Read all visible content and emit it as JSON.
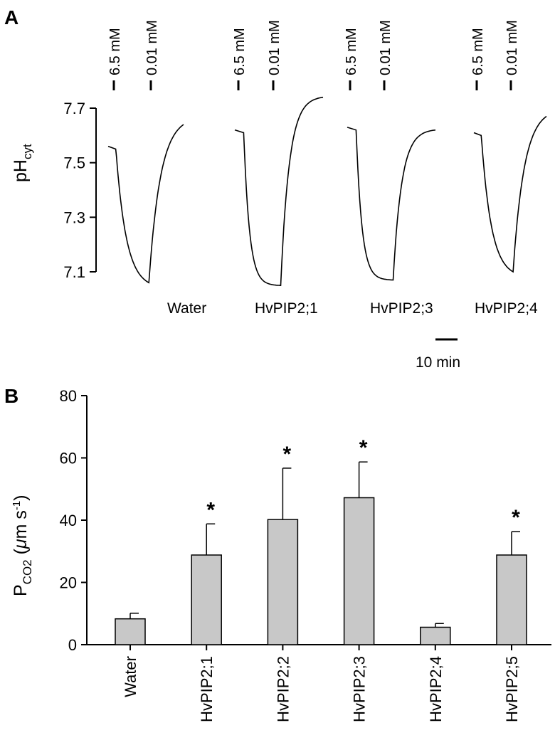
{
  "panel_a": {
    "letter": "A",
    "y_label_main": "pH",
    "y_label_sub": "cyt",
    "y_ticks": [
      "7.7",
      "7.5",
      "7.3",
      "7.1"
    ],
    "annotations": [
      "6.5 mM",
      "0.01 mM"
    ],
    "scale_bar_label": "10 min"
  },
  "panel_b": {
    "letter": "B",
    "y_label_main": "P",
    "y_label_sub": "CO2",
    "y_label_paren_open": " (",
    "y_label_mu": "μ",
    "y_label_unit": "m s",
    "y_label_sup": "-1",
    "y_label_paren_close": ")",
    "y_ticks": [
      "80",
      "60",
      "40",
      "20",
      "0"
    ],
    "significance_marker": "*"
  },
  "chart_data": [
    {
      "type": "line",
      "panel": "A",
      "ylabel": "pHcyt",
      "ylim": [
        7.1,
        7.7
      ],
      "yticks": [
        7.1,
        7.3,
        7.5,
        7.7
      ],
      "annotations": [
        "6.5 mM",
        "0.01 mM"
      ],
      "scale_bar": "10 min",
      "grid": false,
      "series": [
        {
          "name": "Water",
          "start": 7.56,
          "minimum": 7.06,
          "final": 7.64,
          "shape": "gradual"
        },
        {
          "name": "HvPIP2;1",
          "start": 7.62,
          "minimum": 7.05,
          "final": 7.74,
          "shape": "sharp"
        },
        {
          "name": "HvPIP2;3",
          "start": 7.63,
          "minimum": 7.07,
          "final": 7.62,
          "shape": "sharp"
        },
        {
          "name": "HvPIP2;4",
          "start": 7.61,
          "minimum": 7.1,
          "final": 7.67,
          "shape": "gradual"
        }
      ]
    },
    {
      "type": "bar",
      "panel": "B",
      "ylabel": "PCO2 (μm s-1)",
      "ylim": [
        0,
        80
      ],
      "yticks": [
        0,
        20,
        40,
        60,
        80
      ],
      "grid": false,
      "categories": [
        "Water",
        "HvPIP2;1",
        "HvPIP2;2",
        "HvPIP2;3",
        "HvPIP2;4",
        "HvPIP2;5"
      ],
      "values": [
        8.3,
        28.8,
        40.2,
        47.2,
        5.6,
        28.8
      ],
      "errors": [
        1.8,
        10.0,
        16.5,
        11.5,
        1.2,
        7.5
      ],
      "significant": [
        false,
        true,
        true,
        true,
        false,
        true
      ],
      "bar_color": "#c8c8c8"
    }
  ]
}
